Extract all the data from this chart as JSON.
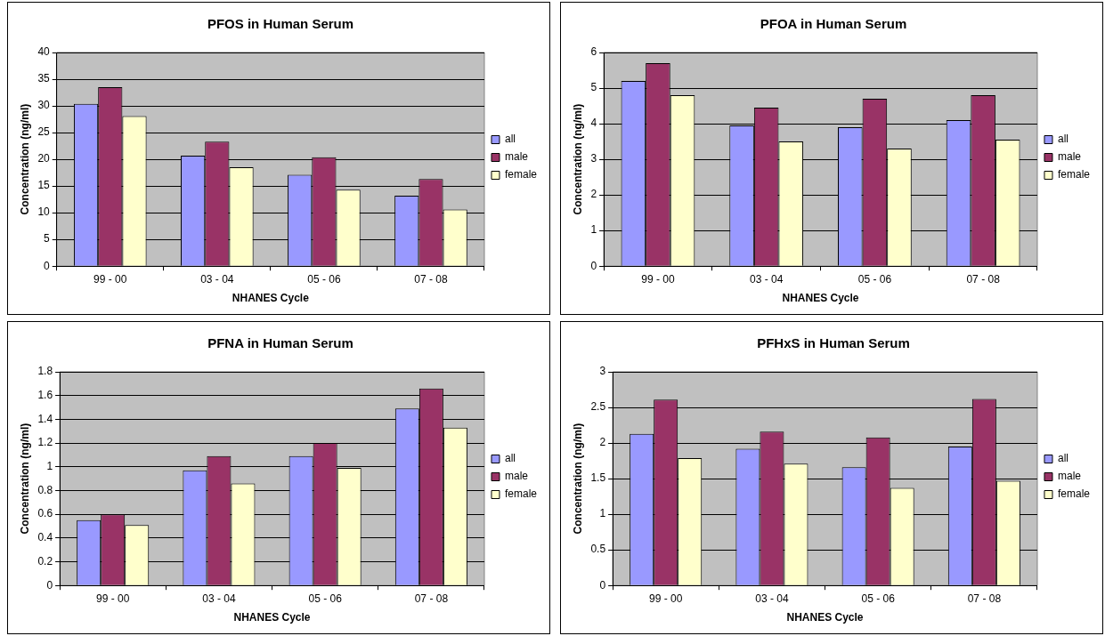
{
  "chart_data": [
    {
      "type": "bar",
      "title": "PFOS in Human Serum",
      "xlabel": "NHANES Cycle",
      "ylabel": "Concentration (ng/ml)",
      "categories": [
        "99 - 00",
        "03 - 04",
        "05 - 06",
        "07 - 08"
      ],
      "series": [
        {
          "name": "all",
          "color": "#9999ff",
          "values": [
            30.4,
            20.7,
            17.1,
            13.2
          ]
        },
        {
          "name": "male",
          "color": "#993366",
          "values": [
            33.5,
            23.3,
            20.4,
            16.3
          ]
        },
        {
          "name": "female",
          "color": "#ffffcc",
          "values": [
            28.1,
            18.5,
            14.3,
            10.6
          ]
        }
      ],
      "ylim": [
        0,
        40
      ],
      "yticks": [
        0,
        5,
        10,
        15,
        20,
        25,
        30,
        35,
        40
      ],
      "grid": "y",
      "legend": "right"
    },
    {
      "type": "bar",
      "title": "PFOA in Human Serum",
      "xlabel": "NHANES Cycle",
      "ylabel": "Concentration (ng/ml)",
      "categories": [
        "99 - 00",
        "03 - 04",
        "05 - 06",
        "07 - 08"
      ],
      "series": [
        {
          "name": "all",
          "color": "#9999ff",
          "values": [
            5.2,
            3.95,
            3.9,
            4.1
          ]
        },
        {
          "name": "male",
          "color": "#993366",
          "values": [
            5.7,
            4.45,
            4.7,
            4.8
          ]
        },
        {
          "name": "female",
          "color": "#ffffcc",
          "values": [
            4.8,
            3.5,
            3.3,
            3.55
          ]
        }
      ],
      "ylim": [
        0,
        6
      ],
      "yticks": [
        0,
        1,
        2,
        3,
        4,
        5,
        6
      ],
      "grid": "y",
      "legend": "right"
    },
    {
      "type": "bar",
      "title": "PFNA in Human Serum",
      "xlabel": "NHANES Cycle",
      "ylabel": "Concentration (ng/ml)",
      "categories": [
        "99 - 00",
        "03 - 04",
        "05 - 06",
        "07 - 08"
      ],
      "series": [
        {
          "name": "all",
          "color": "#9999ff",
          "values": [
            0.55,
            0.97,
            1.09,
            1.49
          ]
        },
        {
          "name": "male",
          "color": "#993366",
          "values": [
            0.6,
            1.09,
            1.2,
            1.66
          ]
        },
        {
          "name": "female",
          "color": "#ffffcc",
          "values": [
            0.51,
            0.86,
            0.99,
            1.33
          ]
        }
      ],
      "ylim": [
        0,
        1.8
      ],
      "yticks": [
        0,
        0.2,
        0.4,
        0.6,
        0.8,
        1,
        1.2,
        1.4,
        1.6,
        1.8
      ],
      "grid": "y",
      "legend": "right"
    },
    {
      "type": "bar",
      "title": "PFHxS in Human Serum",
      "xlabel": "NHANES Cycle",
      "ylabel": "Concentration (ng/ml)",
      "categories": [
        "99 - 00",
        "03 - 04",
        "05 - 06",
        "07 - 08"
      ],
      "series": [
        {
          "name": "all",
          "color": "#9999ff",
          "values": [
            2.13,
            1.92,
            1.66,
            1.95
          ]
        },
        {
          "name": "male",
          "color": "#993366",
          "values": [
            2.61,
            2.16,
            2.08,
            2.62
          ]
        },
        {
          "name": "female",
          "color": "#ffffcc",
          "values": [
            1.79,
            1.71,
            1.37,
            1.47
          ]
        }
      ],
      "ylim": [
        0,
        3
      ],
      "yticks": [
        0,
        0.5,
        1,
        1.5,
        2,
        2.5,
        3
      ],
      "grid": "y",
      "legend": "right"
    }
  ]
}
